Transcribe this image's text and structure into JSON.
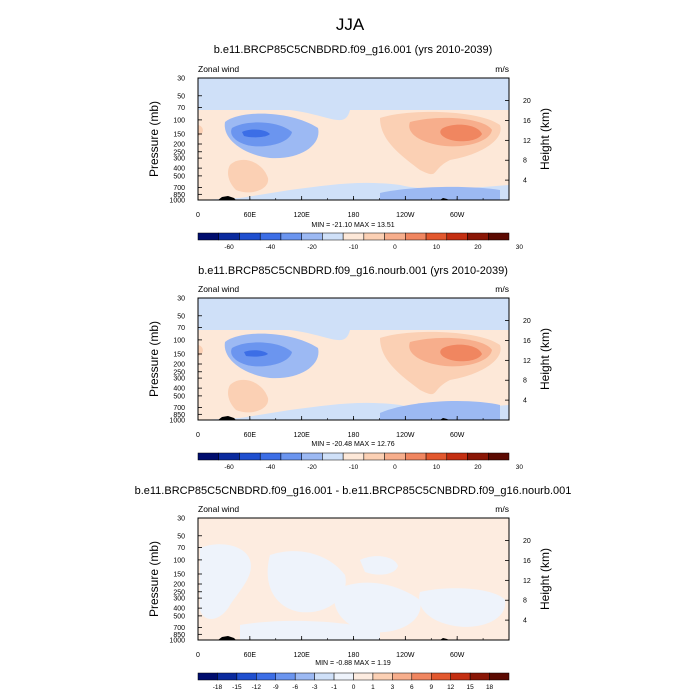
{
  "title": "JJA",
  "shared": {
    "variable": "Zonal wind",
    "units": "m/s",
    "ylabel": "Pressure (mb)",
    "ylabel_right": "Height (km)",
    "pressure_ticks": [
      "30",
      "50",
      "70",
      "100",
      "150",
      "200",
      "250",
      "300",
      "400",
      "500",
      "700",
      "850",
      "1000"
    ],
    "height_ticks": [
      "4",
      "8",
      "12",
      "16",
      "20"
    ],
    "lon_ticks": [
      "0",
      "60E",
      "120E",
      "180",
      "120W",
      "60W"
    ]
  },
  "panels": [
    {
      "title": "b.e11.BRCP85C5CNBDRD.f09_g16.001 (yrs 2010-2039)",
      "stats": "MIN = -21.10  MAX =  13.51",
      "colorbar_labels": [
        "-60",
        "-40",
        "-20",
        "-10",
        "0",
        "10",
        "20",
        "30"
      ]
    },
    {
      "title": "b.e11.BRCP85C5CNBDRD.f09_g16.nourb.001 (yrs 2010-2039)",
      "stats": "MIN = -20.48  MAX =  12.76",
      "colorbar_labels": [
        "-60",
        "-40",
        "-20",
        "-10",
        "0",
        "10",
        "20",
        "30"
      ]
    },
    {
      "title": "b.e11.BRCP85C5CNBDRD.f09_g16.001 - b.e11.BRCP85C5CNBDRD.f09_g16.nourb.001",
      "stats": "MIN =  -0.88  MAX =  1.19",
      "colorbar_labels": [
        "-18",
        "-15",
        "-12",
        "-9",
        "-6",
        "-3",
        "-1",
        "0",
        "1",
        "3",
        "6",
        "9",
        "12",
        "15",
        "18"
      ]
    }
  ],
  "colors": {
    "colorbar_abs": [
      "#000d6e",
      "#0a2a9e",
      "#1f4fcf",
      "#3c6ee6",
      "#6b95ef",
      "#9cb9f3",
      "#cfe0f8",
      "#fde8d8",
      "#fbd0b4",
      "#f7ae8c",
      "#f08660",
      "#e2582e",
      "#c42f12",
      "#8a1606",
      "#5c0a02"
    ],
    "colorbar_diff": [
      "#000d6e",
      "#0a2a9e",
      "#1f4fcf",
      "#3c6ee6",
      "#6b95ef",
      "#9cb9f3",
      "#cfe0f8",
      "#eef3fb",
      "#fdece0",
      "#fbd0b4",
      "#f7ae8c",
      "#f08660",
      "#e2582e",
      "#c42f12",
      "#8a1606",
      "#5c0a02"
    ]
  },
  "chart_data": [
    {
      "type": "heatmap",
      "title": "b.e11.BRCP85C5CNBDRD.f09_g16.001 (yrs 2010-2039)",
      "xlabel": "",
      "ylabel": "Pressure (mb)",
      "ylabel_right": "Height (km)",
      "xlim": [
        0,
        360
      ],
      "ylim_mb": [
        1000,
        30
      ],
      "min": -21.1,
      "max": 13.51,
      "contour_levels": [
        -60,
        -40,
        -20,
        -10,
        0,
        10,
        20,
        30
      ],
      "features": [
        {
          "lon": 75,
          "p_mb": 150,
          "value": -21.1
        },
        {
          "lon": 280,
          "p_mb": 150,
          "value": 13.51
        },
        {
          "lon": 45,
          "p_mb": 650,
          "value": 5
        },
        {
          "lon": 250,
          "p_mb": 250,
          "value": 5
        }
      ]
    },
    {
      "type": "heatmap",
      "title": "b.e11.BRCP85C5CNBDRD.f09_g16.nourb.001 (yrs 2010-2039)",
      "xlabel": "",
      "ylabel": "Pressure (mb)",
      "ylabel_right": "Height (km)",
      "xlim": [
        0,
        360
      ],
      "ylim_mb": [
        1000,
        30
      ],
      "min": -20.48,
      "max": 12.76,
      "contour_levels": [
        -60,
        -40,
        -20,
        -10,
        0,
        10,
        20,
        30
      ],
      "features": [
        {
          "lon": 75,
          "p_mb": 150,
          "value": -20.48
        },
        {
          "lon": 280,
          "p_mb": 150,
          "value": 12.76
        },
        {
          "lon": 45,
          "p_mb": 650,
          "value": 5
        },
        {
          "lon": 250,
          "p_mb": 250,
          "value": 5
        }
      ]
    },
    {
      "type": "heatmap",
      "title": "b.e11.BRCP85C5CNBDRD.f09_g16.001 - b.e11.BRCP85C5CNBDRD.f09_g16.nourb.001",
      "xlabel": "",
      "ylabel": "Pressure (mb)",
      "ylabel_right": "Height (km)",
      "xlim": [
        0,
        360
      ],
      "ylim_mb": [
        1000,
        30
      ],
      "min": -0.88,
      "max": 1.19,
      "contour_levels": [
        -18,
        -15,
        -12,
        -9,
        -6,
        -3,
        -1,
        0,
        1,
        3,
        6,
        9,
        12,
        15,
        18
      ]
    }
  ]
}
